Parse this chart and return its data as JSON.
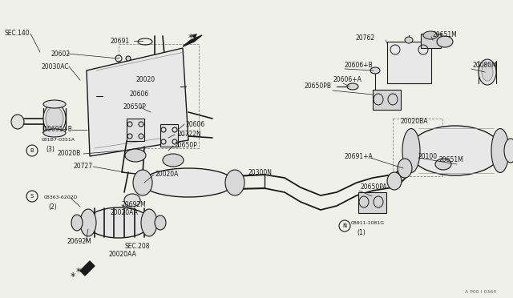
{
  "bg_color": "#f0f0eb",
  "line_color": "#1a1a1a",
  "text_color": "#1a1a1a",
  "watermark": "A P00 I 0364",
  "figsize": [
    6.4,
    3.72
  ],
  "dpi": 100,
  "xlim": [
    0,
    640
  ],
  "ylim": [
    372,
    0
  ]
}
